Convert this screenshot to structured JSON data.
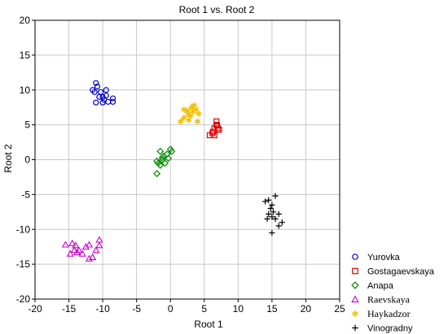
{
  "chart_data": {
    "type": "scatter",
    "title": "Root 1 vs. Root 2",
    "xlabel": "Root 1",
    "ylabel": "Root 2",
    "xlim": [
      -20,
      25
    ],
    "ylim": [
      -20,
      20
    ],
    "xticks": [
      "-20",
      "-15",
      "-10",
      "-5",
      "0",
      "5",
      "10",
      "15",
      "20",
      "25"
    ],
    "yticks": [
      "20",
      "15",
      "10",
      "5",
      "0",
      "-5",
      "-10",
      "-15",
      "-20"
    ],
    "grid": true,
    "legend_position": "bottom-right, outside plot",
    "series": [
      {
        "name": "Yurovka",
        "marker": "circle",
        "color": "#0000cc",
        "points": [
          [
            -11.5,
            10
          ],
          [
            -11,
            11
          ],
          [
            -10.8,
            10.5
          ],
          [
            -11.2,
            9.7
          ],
          [
            -10,
            9
          ],
          [
            -9.5,
            9.2
          ],
          [
            -9.5,
            10
          ],
          [
            -10.3,
            9.7
          ],
          [
            -9.8,
            8.6
          ],
          [
            -9.2,
            8.3
          ],
          [
            -10,
            8.2
          ],
          [
            -8.5,
            8.3
          ],
          [
            -8.5,
            8.8
          ],
          [
            -11,
            8.2
          ],
          [
            -10.5,
            9
          ]
        ]
      },
      {
        "name": "Gostagaevskaya",
        "marker": "square",
        "color": "#dd0000",
        "points": [
          [
            5.8,
            3.5
          ],
          [
            6.3,
            4
          ],
          [
            6.5,
            4.5
          ],
          [
            6.8,
            5
          ],
          [
            6.8,
            5.5
          ],
          [
            7,
            4.5
          ],
          [
            7.2,
            4.3
          ],
          [
            6.5,
            3.5
          ],
          [
            6.2,
            3.8
          ],
          [
            6.9,
            4.9
          ]
        ]
      },
      {
        "name": "Anapa",
        "marker": "diamond",
        "color": "#008800",
        "points": [
          [
            -1.5,
            1.2
          ],
          [
            -1,
            0.5
          ],
          [
            -0.5,
            0.8
          ],
          [
            0,
            1.5
          ],
          [
            -0.3,
            0.2
          ],
          [
            -1.2,
            0
          ],
          [
            -1.8,
            -0.5
          ],
          [
            -2,
            -0.2
          ],
          [
            -1.5,
            -0.8
          ],
          [
            -0.8,
            -0.5
          ],
          [
            -2,
            -2
          ],
          [
            -1.2,
            0.3
          ],
          [
            0.2,
            1.2
          ]
        ]
      },
      {
        "name": "Raevskaya",
        "marker": "triangle",
        "color": "#cc00cc",
        "points": [
          [
            -15.5,
            -12.2
          ],
          [
            -14.5,
            -12
          ],
          [
            -14,
            -12.3
          ],
          [
            -13.5,
            -13
          ],
          [
            -13,
            -13.5
          ],
          [
            -12.5,
            -12.5
          ],
          [
            -12,
            -12.2
          ],
          [
            -11.5,
            -14
          ],
          [
            -11,
            -13
          ],
          [
            -10.5,
            -11.5
          ],
          [
            -10.5,
            -12.3
          ],
          [
            -14.8,
            -13.5
          ],
          [
            -14.2,
            -13
          ],
          [
            -13.8,
            -13.3
          ],
          [
            -12,
            -14.2
          ]
        ]
      },
      {
        "name": "Haykadzor",
        "marker": "asterisk",
        "color": "#eebb00",
        "points": [
          [
            1.5,
            5.5
          ],
          [
            2,
            6
          ],
          [
            2,
            7.2
          ],
          [
            2.5,
            7
          ],
          [
            2.6,
            6.5
          ],
          [
            3,
            6.3
          ],
          [
            3.1,
            7.5
          ],
          [
            3.5,
            7.8
          ],
          [
            3.8,
            7.2
          ],
          [
            4,
            5.5
          ],
          [
            4.2,
            6.6
          ],
          [
            2.7,
            5.7
          ],
          [
            3.3,
            6.9
          ]
        ]
      },
      {
        "name": "Vinogradny",
        "marker": "plus",
        "color": "#000000",
        "points": [
          [
            14,
            -6
          ],
          [
            14.5,
            -5.8
          ],
          [
            15,
            -6.5
          ],
          [
            15.5,
            -5.2
          ],
          [
            14.3,
            -8.5
          ],
          [
            14.5,
            -7.8
          ],
          [
            15,
            -8.2
          ],
          [
            15.2,
            -7.5
          ],
          [
            15.5,
            -8.5
          ],
          [
            16,
            -7.8
          ],
          [
            16,
            -9.5
          ],
          [
            16.5,
            -9
          ],
          [
            15,
            -10.5
          ],
          [
            14.8,
            -7
          ]
        ]
      }
    ]
  }
}
